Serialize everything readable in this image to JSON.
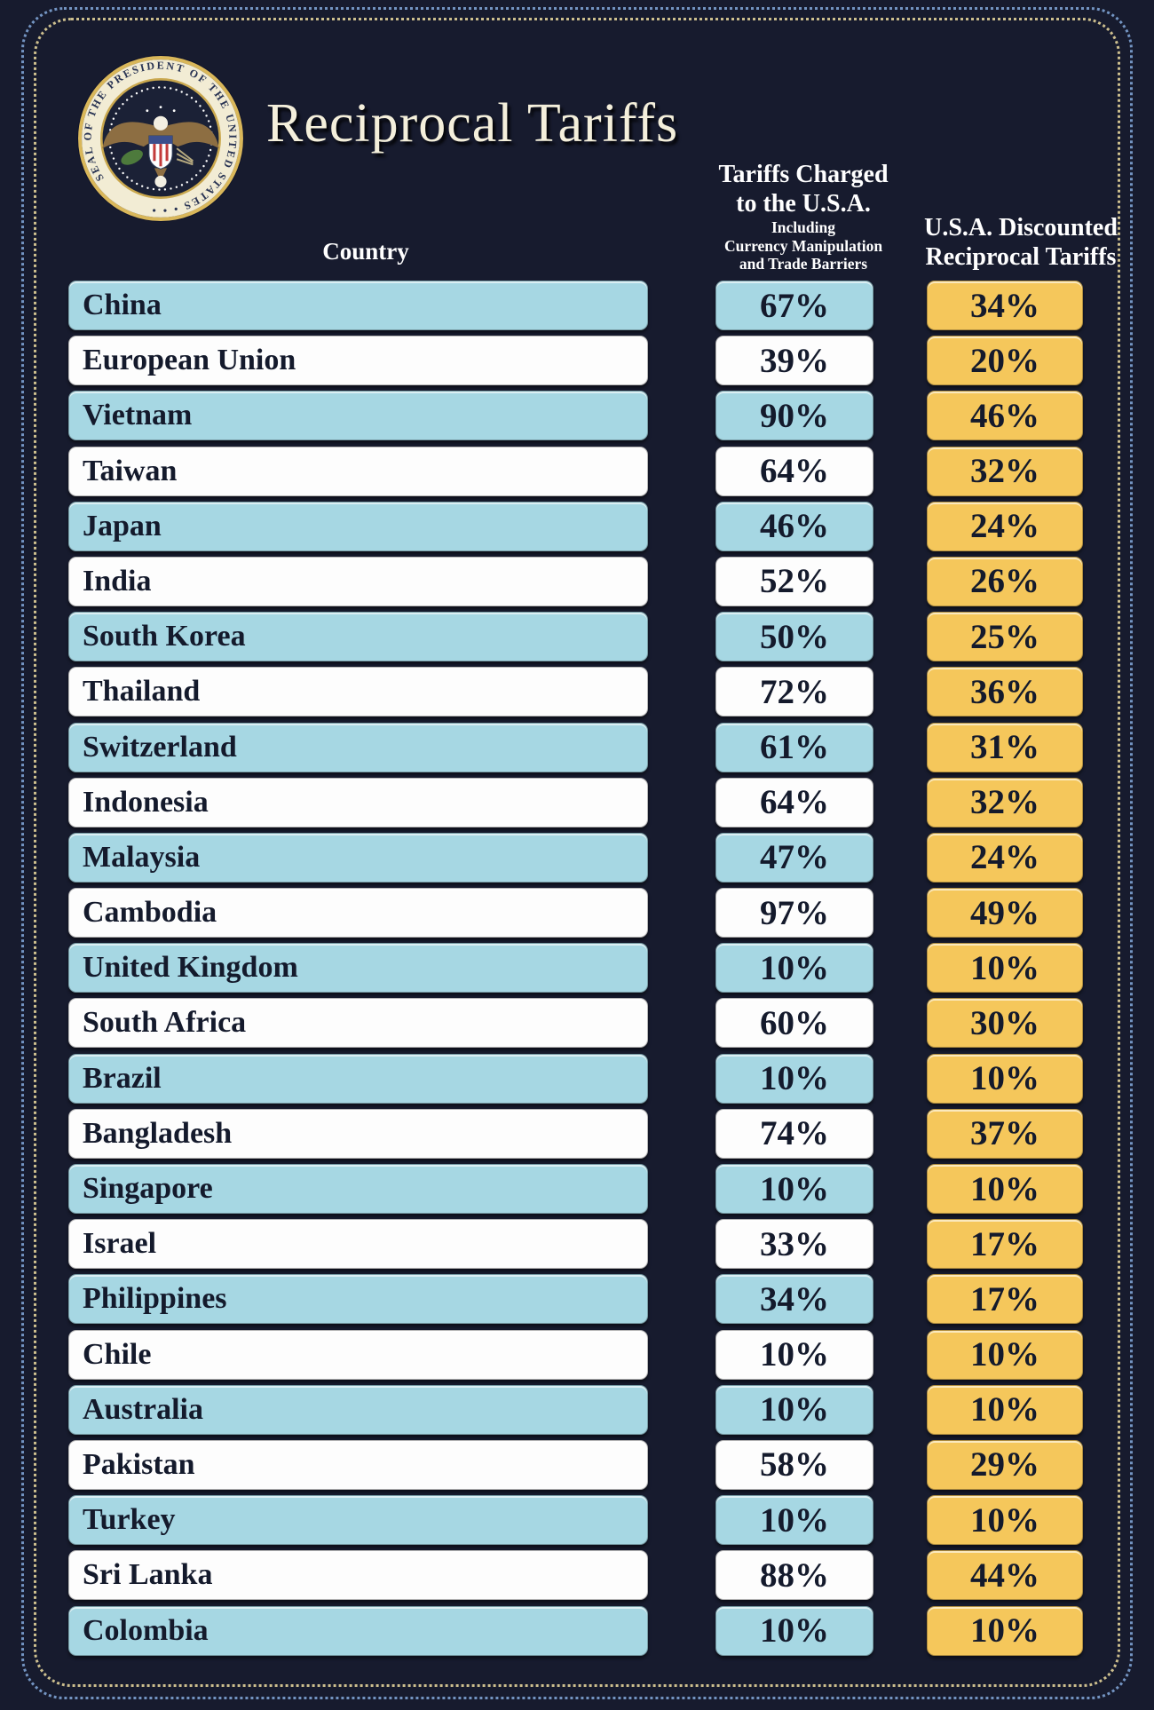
{
  "header": {
    "title": "Reciprocal Tariffs",
    "seal": {
      "name": "Seal of the President of the United States",
      "ring_text": "SEAL OF THE PRESIDENT OF THE UNITED STATES • • •"
    }
  },
  "columns": {
    "country_label": "Country",
    "charged_line1": "Tariffs Charged",
    "charged_line2": "to the U.S.A.",
    "charged_sub1": "Including",
    "charged_sub2": "Currency Manipulation",
    "charged_sub3": "and Trade Barriers",
    "discounted_line1": "U.S.A. Discounted",
    "discounted_line2": "Reciprocal Tariffs"
  },
  "colors": {
    "background": "#171b2e",
    "row_blue": "#a6d7e3",
    "row_white": "#fdfdfd",
    "accent_gold": "#f5c75b",
    "bar_text": "#141a2c",
    "header_text": "#ffffff",
    "title_text": "#f4efdb",
    "border_outer_blue": "#7394c2",
    "border_inner_gold": "#cdbf8e"
  },
  "chart_data": {
    "type": "table",
    "title": "Reciprocal Tariffs",
    "columns": [
      "Country",
      "Tariffs Charged to the U.S.A. Including Currency Manipulation and Trade Barriers",
      "U.S.A. Discounted Reciprocal Tariffs"
    ],
    "rows": [
      [
        "China",
        "67%",
        "34%"
      ],
      [
        "European Union",
        "39%",
        "20%"
      ],
      [
        "Vietnam",
        "90%",
        "46%"
      ],
      [
        "Taiwan",
        "64%",
        "32%"
      ],
      [
        "Japan",
        "46%",
        "24%"
      ],
      [
        "India",
        "52%",
        "26%"
      ],
      [
        "South Korea",
        "50%",
        "25%"
      ],
      [
        "Thailand",
        "72%",
        "36%"
      ],
      [
        "Switzerland",
        "61%",
        "31%"
      ],
      [
        "Indonesia",
        "64%",
        "32%"
      ],
      [
        "Malaysia",
        "47%",
        "24%"
      ],
      [
        "Cambodia",
        "97%",
        "49%"
      ],
      [
        "United Kingdom",
        "10%",
        "10%"
      ],
      [
        "South Africa",
        "60%",
        "30%"
      ],
      [
        "Brazil",
        "10%",
        "10%"
      ],
      [
        "Bangladesh",
        "74%",
        "37%"
      ],
      [
        "Singapore",
        "10%",
        "10%"
      ],
      [
        "Israel",
        "33%",
        "17%"
      ],
      [
        "Philippines",
        "34%",
        "17%"
      ],
      [
        "Chile",
        "10%",
        "10%"
      ],
      [
        "Australia",
        "10%",
        "10%"
      ],
      [
        "Pakistan",
        "58%",
        "29%"
      ],
      [
        "Turkey",
        "10%",
        "10%"
      ],
      [
        "Sri Lanka",
        "88%",
        "44%"
      ],
      [
        "Colombia",
        "10%",
        "10%"
      ]
    ]
  }
}
